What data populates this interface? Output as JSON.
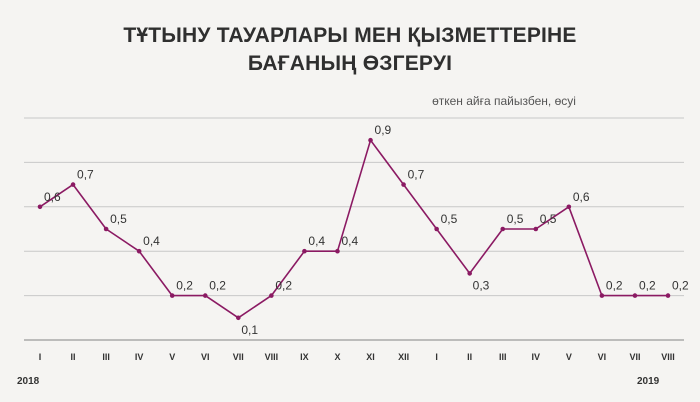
{
  "title": {
    "line1": "ТҰТЫНУ ТАУАРЛАРЫ МЕН ҚЫЗМЕТТЕРІНЕ",
    "line2": "БАҒАНЫҢ ӨЗГЕРУІ"
  },
  "subtitle": "өткен айға пайызбен, өсуі",
  "years": {
    "start": "2018",
    "end": "2019"
  },
  "colors": {
    "line": "#8b1a63",
    "grid": "#c8c8c8",
    "text": "#333333"
  },
  "chart_data": {
    "type": "line",
    "title": "ТҰТЫНУ ТАУАРЛАРЫ МЕН ҚЫЗМЕТТЕРІНЕ БАҒАНЫҢ ӨЗГЕРУІ",
    "subtitle": "өткен айға пайызбен, өсуі",
    "categories": [
      "I",
      "II",
      "III",
      "IV",
      "V",
      "VI",
      "VII",
      "VIII",
      "IX",
      "X",
      "XI",
      "XII",
      "I",
      "II",
      "III",
      "IV",
      "V",
      "VI",
      "VII",
      "VIII"
    ],
    "values": [
      0.6,
      0.7,
      0.5,
      0.4,
      0.2,
      0.2,
      0.1,
      0.2,
      0.4,
      0.4,
      0.9,
      0.7,
      0.5,
      0.3,
      0.5,
      0.5,
      0.6,
      0.2,
      0.2,
      0.2
    ],
    "data_labels": [
      "0,6",
      "0,7",
      "0,5",
      "0,4",
      "0,2",
      "0,2",
      "0,1",
      "0,2",
      "0,4",
      "0,4",
      "0,9",
      "0,7",
      "0,5",
      "0,3",
      "0,5",
      "0,5",
      "0,6",
      "0,2",
      "0,2",
      "0,2"
    ],
    "ylim": [
      0,
      1.0
    ],
    "grid": true,
    "xlabel": "",
    "ylabel": ""
  }
}
